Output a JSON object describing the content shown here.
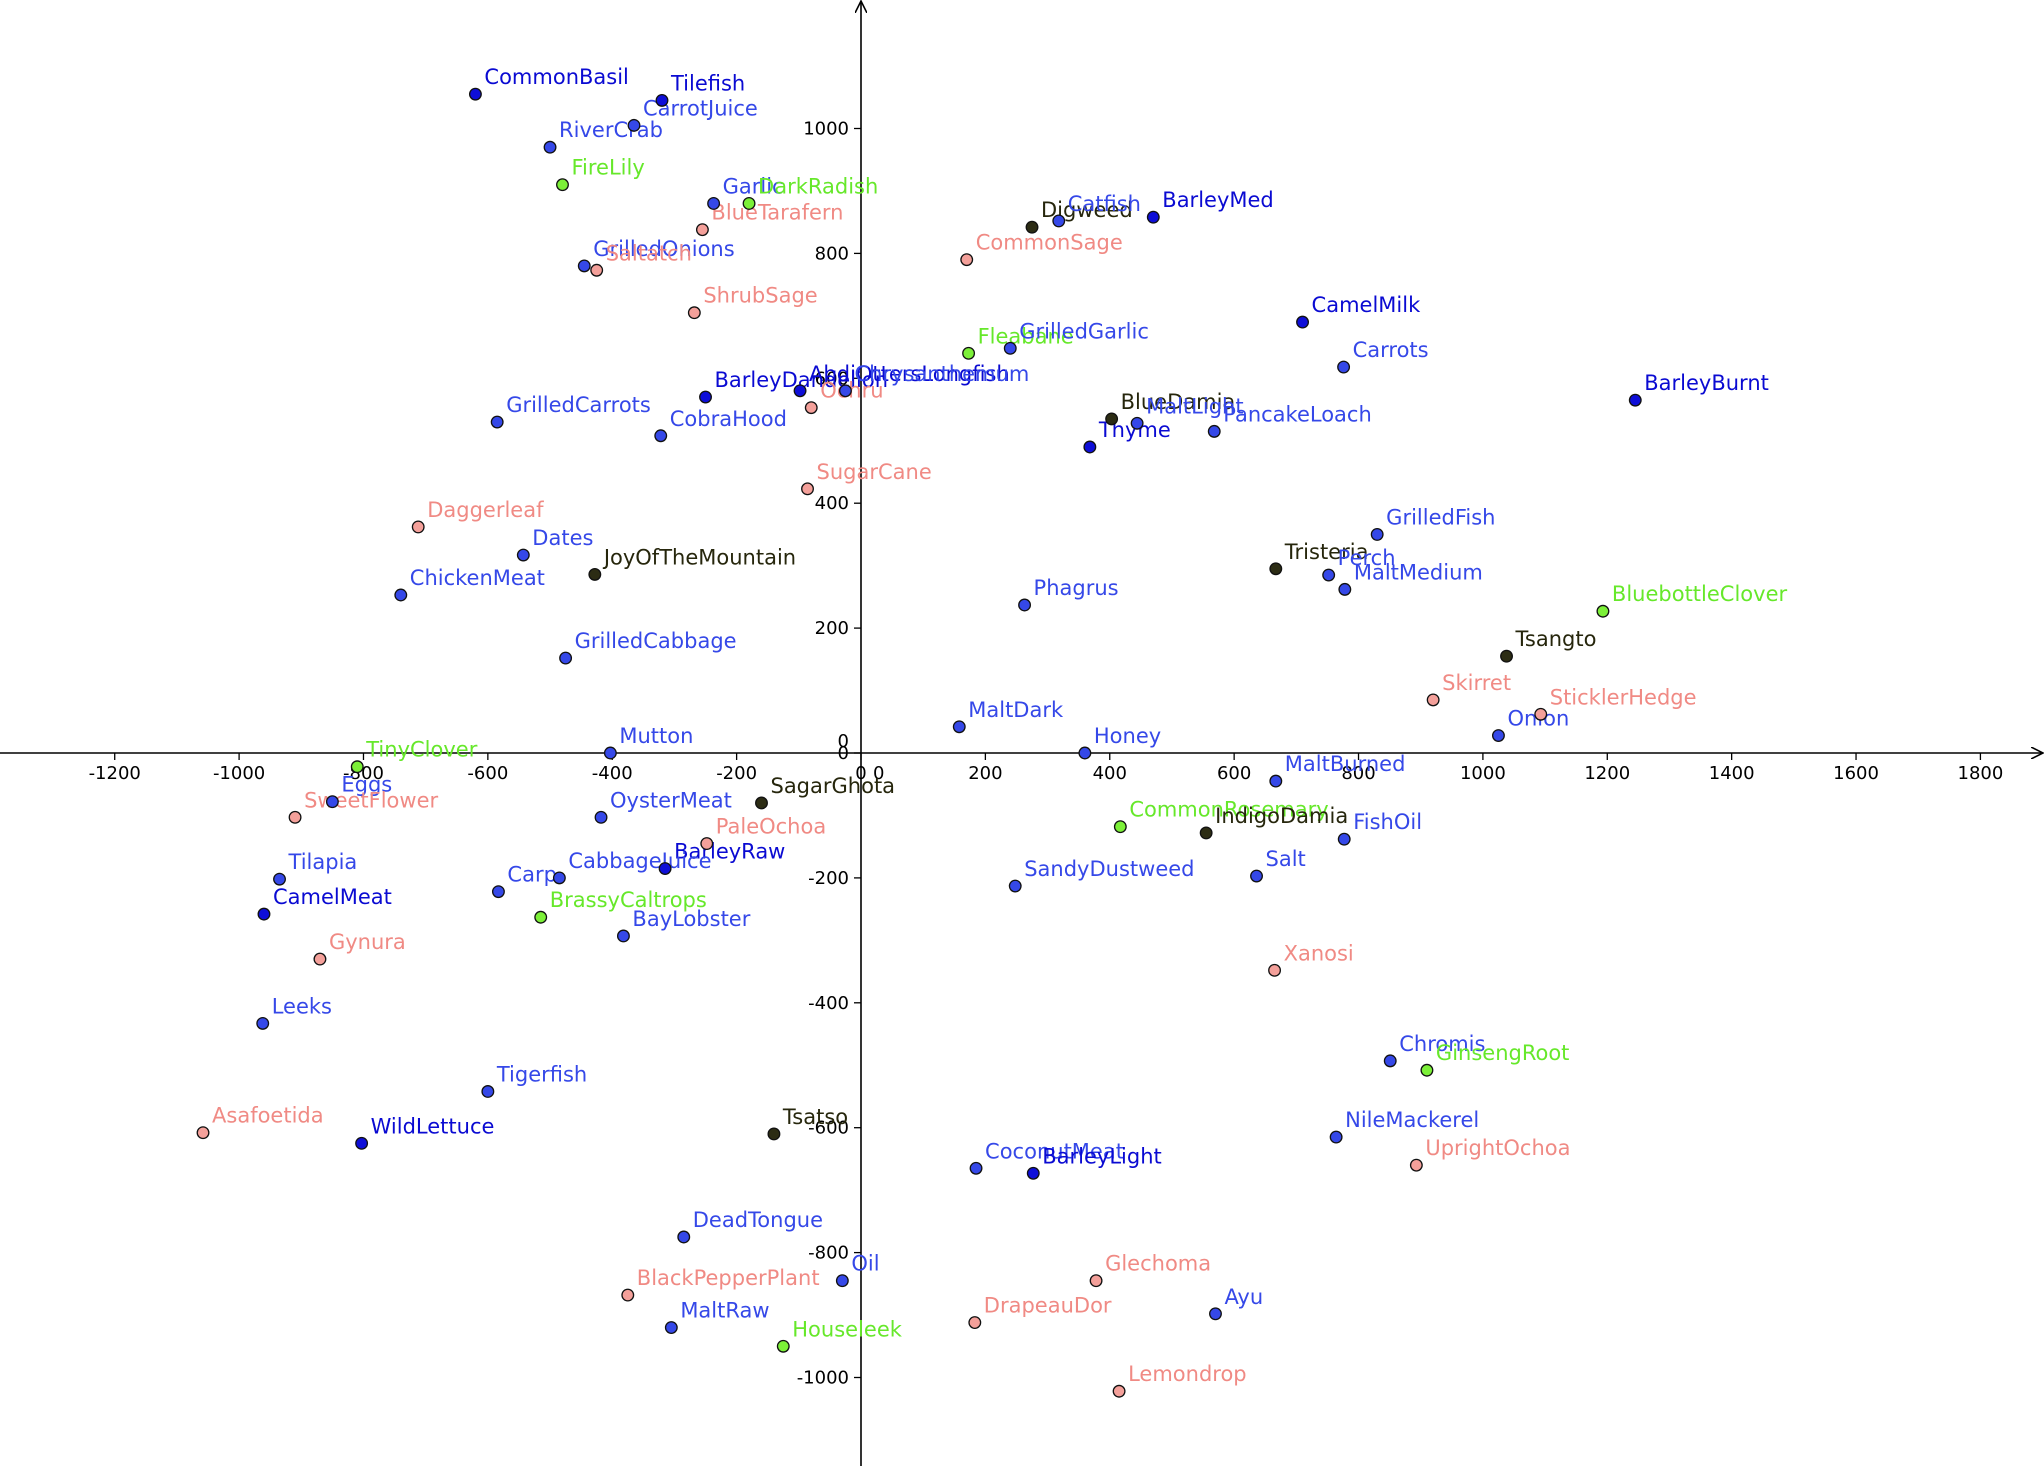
{
  "chart_data": {
    "type": "scatter",
    "title": "",
    "xlabel": "",
    "ylabel": "",
    "xlim": [
      -1400,
      1900
    ],
    "ylim": [
      -1145,
      1195
    ],
    "grid": false,
    "x_ticks": [
      -1200,
      -1000,
      -800,
      -600,
      -400,
      -200,
      0,
      200,
      400,
      600,
      800,
      1000,
      1200,
      1400,
      1600,
      1800
    ],
    "y_ticks": [
      -1000,
      -800,
      -600,
      -400,
      -200,
      0,
      200,
      400,
      600,
      800,
      1000
    ],
    "x_tick_labels": [
      "-1200",
      "-1000",
      "-800",
      "-600",
      "-400",
      "-200",
      "0",
      "200",
      "400",
      "600",
      "800",
      "1000",
      "1200",
      "1400",
      "1600",
      "1800"
    ],
    "y_tick_labels": [
      "-1000",
      "-800",
      "-600",
      "-400",
      "-200",
      "0",
      "200",
      "400",
      "600",
      "800",
      "1000"
    ],
    "categories": {
      "royal_blue": {
        "fill": "#3548e8",
        "text": "#3548e8"
      },
      "dark_blue": {
        "fill": "#0e0ed8",
        "text": "#0a0ad2"
      },
      "salmon": {
        "fill": "#f4a09a",
        "text": "#f08a84"
      },
      "green": {
        "fill": "#7cf038",
        "text": "#66e82a"
      },
      "dark": {
        "fill": "#2c2c14",
        "text": "#26260c"
      }
    },
    "points": [
      {
        "label": "CommonBasil",
        "x": -620,
        "y": 1055,
        "cat": "dark_blue"
      },
      {
        "label": "Tilefish",
        "x": -320,
        "y": 1045,
        "cat": "dark_blue"
      },
      {
        "label": "CarrotJuice",
        "x": -365,
        "y": 1005,
        "cat": "royal_blue"
      },
      {
        "label": "RiverCrab",
        "x": -500,
        "y": 970,
        "cat": "royal_blue"
      },
      {
        "label": "FireLily",
        "x": -480,
        "y": 910,
        "cat": "green"
      },
      {
        "label": "Garlic",
        "x": -237,
        "y": 880,
        "cat": "royal_blue"
      },
      {
        "label": "DarkRadish",
        "x": -180,
        "y": 880,
        "cat": "green"
      },
      {
        "label": "BlueTarafern",
        "x": -255,
        "y": 838,
        "cat": "salmon"
      },
      {
        "label": "GrilledOnions",
        "x": -445,
        "y": 780,
        "cat": "royal_blue"
      },
      {
        "label": "Saltatch",
        "x": -425,
        "y": 773,
        "cat": "salmon"
      },
      {
        "label": "ShrubSage",
        "x": -268,
        "y": 705,
        "cat": "salmon"
      },
      {
        "label": "BarleyDandelion",
        "x": -250,
        "y": 570,
        "cat": "dark_blue"
      },
      {
        "label": "AbdiOttersLongfish",
        "x": -98,
        "y": 580,
        "cat": "dark_blue"
      },
      {
        "label": "Chrysanthemum",
        "x": -25,
        "y": 580,
        "cat": "royal_blue"
      },
      {
        "label": "Ochru",
        "x": -80,
        "y": 553,
        "cat": "salmon"
      },
      {
        "label": "GrilledCarrots",
        "x": -585,
        "y": 530,
        "cat": "royal_blue"
      },
      {
        "label": "CobraHood",
        "x": -322,
        "y": 508,
        "cat": "royal_blue"
      },
      {
        "label": "SugarCane",
        "x": -86,
        "y": 423,
        "cat": "salmon"
      },
      {
        "label": "Daggerleaf",
        "x": -712,
        "y": 362,
        "cat": "salmon"
      },
      {
        "label": "Dates",
        "x": -543,
        "y": 317,
        "cat": "royal_blue"
      },
      {
        "label": "JoyOfTheMountain",
        "x": -428,
        "y": 286,
        "cat": "dark"
      },
      {
        "label": "ChickenMeat",
        "x": -740,
        "y": 253,
        "cat": "royal_blue"
      },
      {
        "label": "GrilledCabbage",
        "x": -475,
        "y": 152,
        "cat": "royal_blue"
      },
      {
        "label": "Digweed",
        "x": 275,
        "y": 842,
        "cat": "dark"
      },
      {
        "label": "Catfish",
        "x": 318,
        "y": 852,
        "cat": "royal_blue"
      },
      {
        "label": "BarleyMed",
        "x": 470,
        "y": 858,
        "cat": "dark_blue"
      },
      {
        "label": "CommonSage",
        "x": 170,
        "y": 790,
        "cat": "salmon"
      },
      {
        "label": "CamelMilk",
        "x": 710,
        "y": 690,
        "cat": "dark_blue"
      },
      {
        "label": "Fleabane",
        "x": 173,
        "y": 640,
        "cat": "green"
      },
      {
        "label": "GrilledGarlic",
        "x": 240,
        "y": 648,
        "cat": "royal_blue"
      },
      {
        "label": "Carrots",
        "x": 776,
        "y": 618,
        "cat": "royal_blue"
      },
      {
        "label": "BarleyBurnt",
        "x": 1245,
        "y": 565,
        "cat": "dark_blue"
      },
      {
        "label": "BlueDamia",
        "x": 403,
        "y": 535,
        "cat": "dark"
      },
      {
        "label": "MaltLight",
        "x": 444,
        "y": 528,
        "cat": "royal_blue"
      },
      {
        "label": "PancakeLoach",
        "x": 568,
        "y": 515,
        "cat": "royal_blue"
      },
      {
        "label": "Thyme",
        "x": 368,
        "y": 490,
        "cat": "dark_blue"
      },
      {
        "label": "GrilledFish",
        "x": 830,
        "y": 350,
        "cat": "royal_blue"
      },
      {
        "label": "Tristeria",
        "x": 667,
        "y": 295,
        "cat": "dark"
      },
      {
        "label": "Perch",
        "x": 752,
        "y": 285,
        "cat": "royal_blue"
      },
      {
        "label": "MaltMedium",
        "x": 778,
        "y": 262,
        "cat": "royal_blue"
      },
      {
        "label": "Phagrus",
        "x": 263,
        "y": 237,
        "cat": "royal_blue"
      },
      {
        "label": "BluebottleClover",
        "x": 1193,
        "y": 227,
        "cat": "green"
      },
      {
        "label": "Tsangto",
        "x": 1038,
        "y": 155,
        "cat": "dark"
      },
      {
        "label": "Skirret",
        "x": 920,
        "y": 85,
        "cat": "salmon"
      },
      {
        "label": "SticklerHedge",
        "x": 1093,
        "y": 62,
        "cat": "salmon"
      },
      {
        "label": "Onion",
        "x": 1025,
        "y": 28,
        "cat": "royal_blue"
      },
      {
        "label": "MaltDark",
        "x": 158,
        "y": 42,
        "cat": "royal_blue"
      },
      {
        "label": "Honey",
        "x": 360,
        "y": 0,
        "cat": "royal_blue"
      },
      {
        "label": "TinyClover",
        "x": -810,
        "y": -22,
        "cat": "green"
      },
      {
        "label": "Mutton",
        "x": -403,
        "y": 0,
        "cat": "royal_blue"
      },
      {
        "label": "Eggs",
        "x": -850,
        "y": -78,
        "cat": "royal_blue"
      },
      {
        "label": "SweetFlower",
        "x": -910,
        "y": -103,
        "cat": "salmon"
      },
      {
        "label": "SagarGhota",
        "x": -160,
        "y": -80,
        "cat": "dark"
      },
      {
        "label": "OysterMeat",
        "x": -418,
        "y": -103,
        "cat": "royal_blue"
      },
      {
        "label": "PaleOchoa",
        "x": -248,
        "y": -145,
        "cat": "salmon"
      },
      {
        "label": "BarleyRaw",
        "x": -315,
        "y": -185,
        "cat": "dark_blue"
      },
      {
        "label": "CabbageJuice",
        "x": -485,
        "y": -200,
        "cat": "royal_blue"
      },
      {
        "label": "Carp",
        "x": -583,
        "y": -222,
        "cat": "royal_blue"
      },
      {
        "label": "BrassyCaltrops",
        "x": -515,
        "y": -263,
        "cat": "green"
      },
      {
        "label": "BayLobster",
        "x": -382,
        "y": -293,
        "cat": "royal_blue"
      },
      {
        "label": "Tilapia",
        "x": -935,
        "y": -202,
        "cat": "royal_blue"
      },
      {
        "label": "CamelMeat",
        "x": -960,
        "y": -258,
        "cat": "dark_blue"
      },
      {
        "label": "Gynura",
        "x": -870,
        "y": -330,
        "cat": "salmon"
      },
      {
        "label": "Leeks",
        "x": -962,
        "y": -433,
        "cat": "royal_blue"
      },
      {
        "label": "Tigerfish",
        "x": -600,
        "y": -542,
        "cat": "royal_blue"
      },
      {
        "label": "Asafoetida",
        "x": -1058,
        "y": -608,
        "cat": "salmon"
      },
      {
        "label": "WildLettuce",
        "x": -803,
        "y": -625,
        "cat": "dark_blue"
      },
      {
        "label": "Tsatso",
        "x": -140,
        "y": -610,
        "cat": "dark"
      },
      {
        "label": "MaltBurned",
        "x": 667,
        "y": -45,
        "cat": "royal_blue"
      },
      {
        "label": "CommonRosemary",
        "x": 417,
        "y": -118,
        "cat": "green"
      },
      {
        "label": "IndigoDamia",
        "x": 555,
        "y": -128,
        "cat": "dark"
      },
      {
        "label": "FishOil",
        "x": 777,
        "y": -138,
        "cat": "royal_blue"
      },
      {
        "label": "SandyDustweed",
        "x": 248,
        "y": -213,
        "cat": "royal_blue"
      },
      {
        "label": "Salt",
        "x": 636,
        "y": -197,
        "cat": "royal_blue"
      },
      {
        "label": "Xanosi",
        "x": 665,
        "y": -348,
        "cat": "salmon"
      },
      {
        "label": "Chromis",
        "x": 851,
        "y": -493,
        "cat": "royal_blue"
      },
      {
        "label": "GinsengRoot",
        "x": 910,
        "y": -508,
        "cat": "green"
      },
      {
        "label": "NileMackerel",
        "x": 764,
        "y": -615,
        "cat": "royal_blue"
      },
      {
        "label": "UprightOchoa",
        "x": 893,
        "y": -660,
        "cat": "salmon"
      },
      {
        "label": "CoconutMeat",
        "x": 185,
        "y": -665,
        "cat": "royal_blue"
      },
      {
        "label": "BarleyLight",
        "x": 277,
        "y": -673,
        "cat": "dark_blue"
      },
      {
        "label": "DeadTongue",
        "x": -285,
        "y": -775,
        "cat": "royal_blue"
      },
      {
        "label": "Oil",
        "x": -30,
        "y": -845,
        "cat": "royal_blue"
      },
      {
        "label": "BlackPepperPlant",
        "x": -375,
        "y": -868,
        "cat": "salmon"
      },
      {
        "label": "MaltRaw",
        "x": -305,
        "y": -920,
        "cat": "royal_blue"
      },
      {
        "label": "Houseleek",
        "x": -125,
        "y": -950,
        "cat": "green"
      },
      {
        "label": "Glechoma",
        "x": 378,
        "y": -845,
        "cat": "salmon"
      },
      {
        "label": "DrapeauDor",
        "x": 183,
        "y": -912,
        "cat": "salmon"
      },
      {
        "label": "Ayu",
        "x": 570,
        "y": -898,
        "cat": "royal_blue"
      },
      {
        "label": "Lemondrop",
        "x": 415,
        "y": -1022,
        "cat": "salmon"
      }
    ]
  }
}
